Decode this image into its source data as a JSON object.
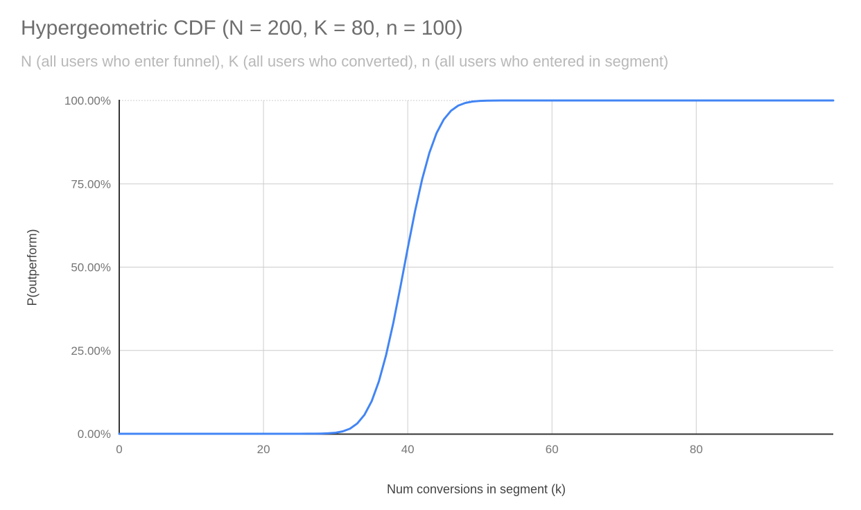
{
  "chart_data": {
    "type": "line",
    "title": "Hypergeometric CDF (N = 200, K = 80, n = 100)",
    "subtitle": "N (all users who enter funnel), K (all users who converted), n (all users who entered in segment)",
    "xlabel": "Num conversions in segment (k)",
    "ylabel": "P(outperform)",
    "xlim": [
      0,
      99
    ],
    "ylim": [
      0,
      1
    ],
    "grid": true,
    "legend": "none",
    "x_ticks": [
      {
        "value": 0,
        "label": "0"
      },
      {
        "value": 20,
        "label": "20"
      },
      {
        "value": 40,
        "label": "40"
      },
      {
        "value": 60,
        "label": "60"
      },
      {
        "value": 80,
        "label": "80"
      }
    ],
    "y_ticks": [
      {
        "value": 0,
        "label": "0.00%"
      },
      {
        "value": 0.25,
        "label": "25.00%"
      },
      {
        "value": 0.5,
        "label": "50.00%"
      },
      {
        "value": 0.75,
        "label": "75.00%"
      },
      {
        "value": 1,
        "label": "100.00%"
      }
    ],
    "series": [
      {
        "name": "P(outperform)",
        "color": "#4285f4",
        "points": [
          [
            0,
            0
          ],
          [
            5,
            0
          ],
          [
            10,
            0
          ],
          [
            15,
            0
          ],
          [
            20,
            0
          ],
          [
            24,
            0
          ],
          [
            25,
            0.0001
          ],
          [
            26,
            0.0002
          ],
          [
            27,
            0.0003
          ],
          [
            28,
            0.0006
          ],
          [
            29,
            0.0014
          ],
          [
            30,
            0.0031
          ],
          [
            31,
            0.0072
          ],
          [
            32,
            0.0154
          ],
          [
            33,
            0.0307
          ],
          [
            34,
            0.0567
          ],
          [
            35,
            0.0976
          ],
          [
            36,
            0.157
          ],
          [
            37,
            0.236
          ],
          [
            38,
            0.333
          ],
          [
            39,
            0.4428
          ],
          [
            40,
            0.5572
          ],
          [
            41,
            0.667
          ],
          [
            42,
            0.764
          ],
          [
            43,
            0.843
          ],
          [
            44,
            0.9024
          ],
          [
            45,
            0.9433
          ],
          [
            46,
            0.9693
          ],
          [
            47,
            0.9846
          ],
          [
            48,
            0.9928
          ],
          [
            49,
            0.9969
          ],
          [
            50,
            0.9988
          ],
          [
            51,
            0.9995
          ],
          [
            52,
            0.9998
          ],
          [
            53,
            0.9999
          ],
          [
            54,
            1
          ],
          [
            60,
            1
          ],
          [
            70,
            1
          ],
          [
            80,
            1
          ],
          [
            90,
            1
          ],
          [
            99,
            1
          ]
        ]
      }
    ],
    "colors": {
      "series": "#4285f4",
      "gridline": "#cccccc",
      "axis_line": "#333333",
      "title_text": "#6e6e6e",
      "subtitle_text": "#b8b8b8",
      "tick_text": "#757575",
      "axis_title_text": "#424242",
      "background": "#ffffff"
    }
  }
}
